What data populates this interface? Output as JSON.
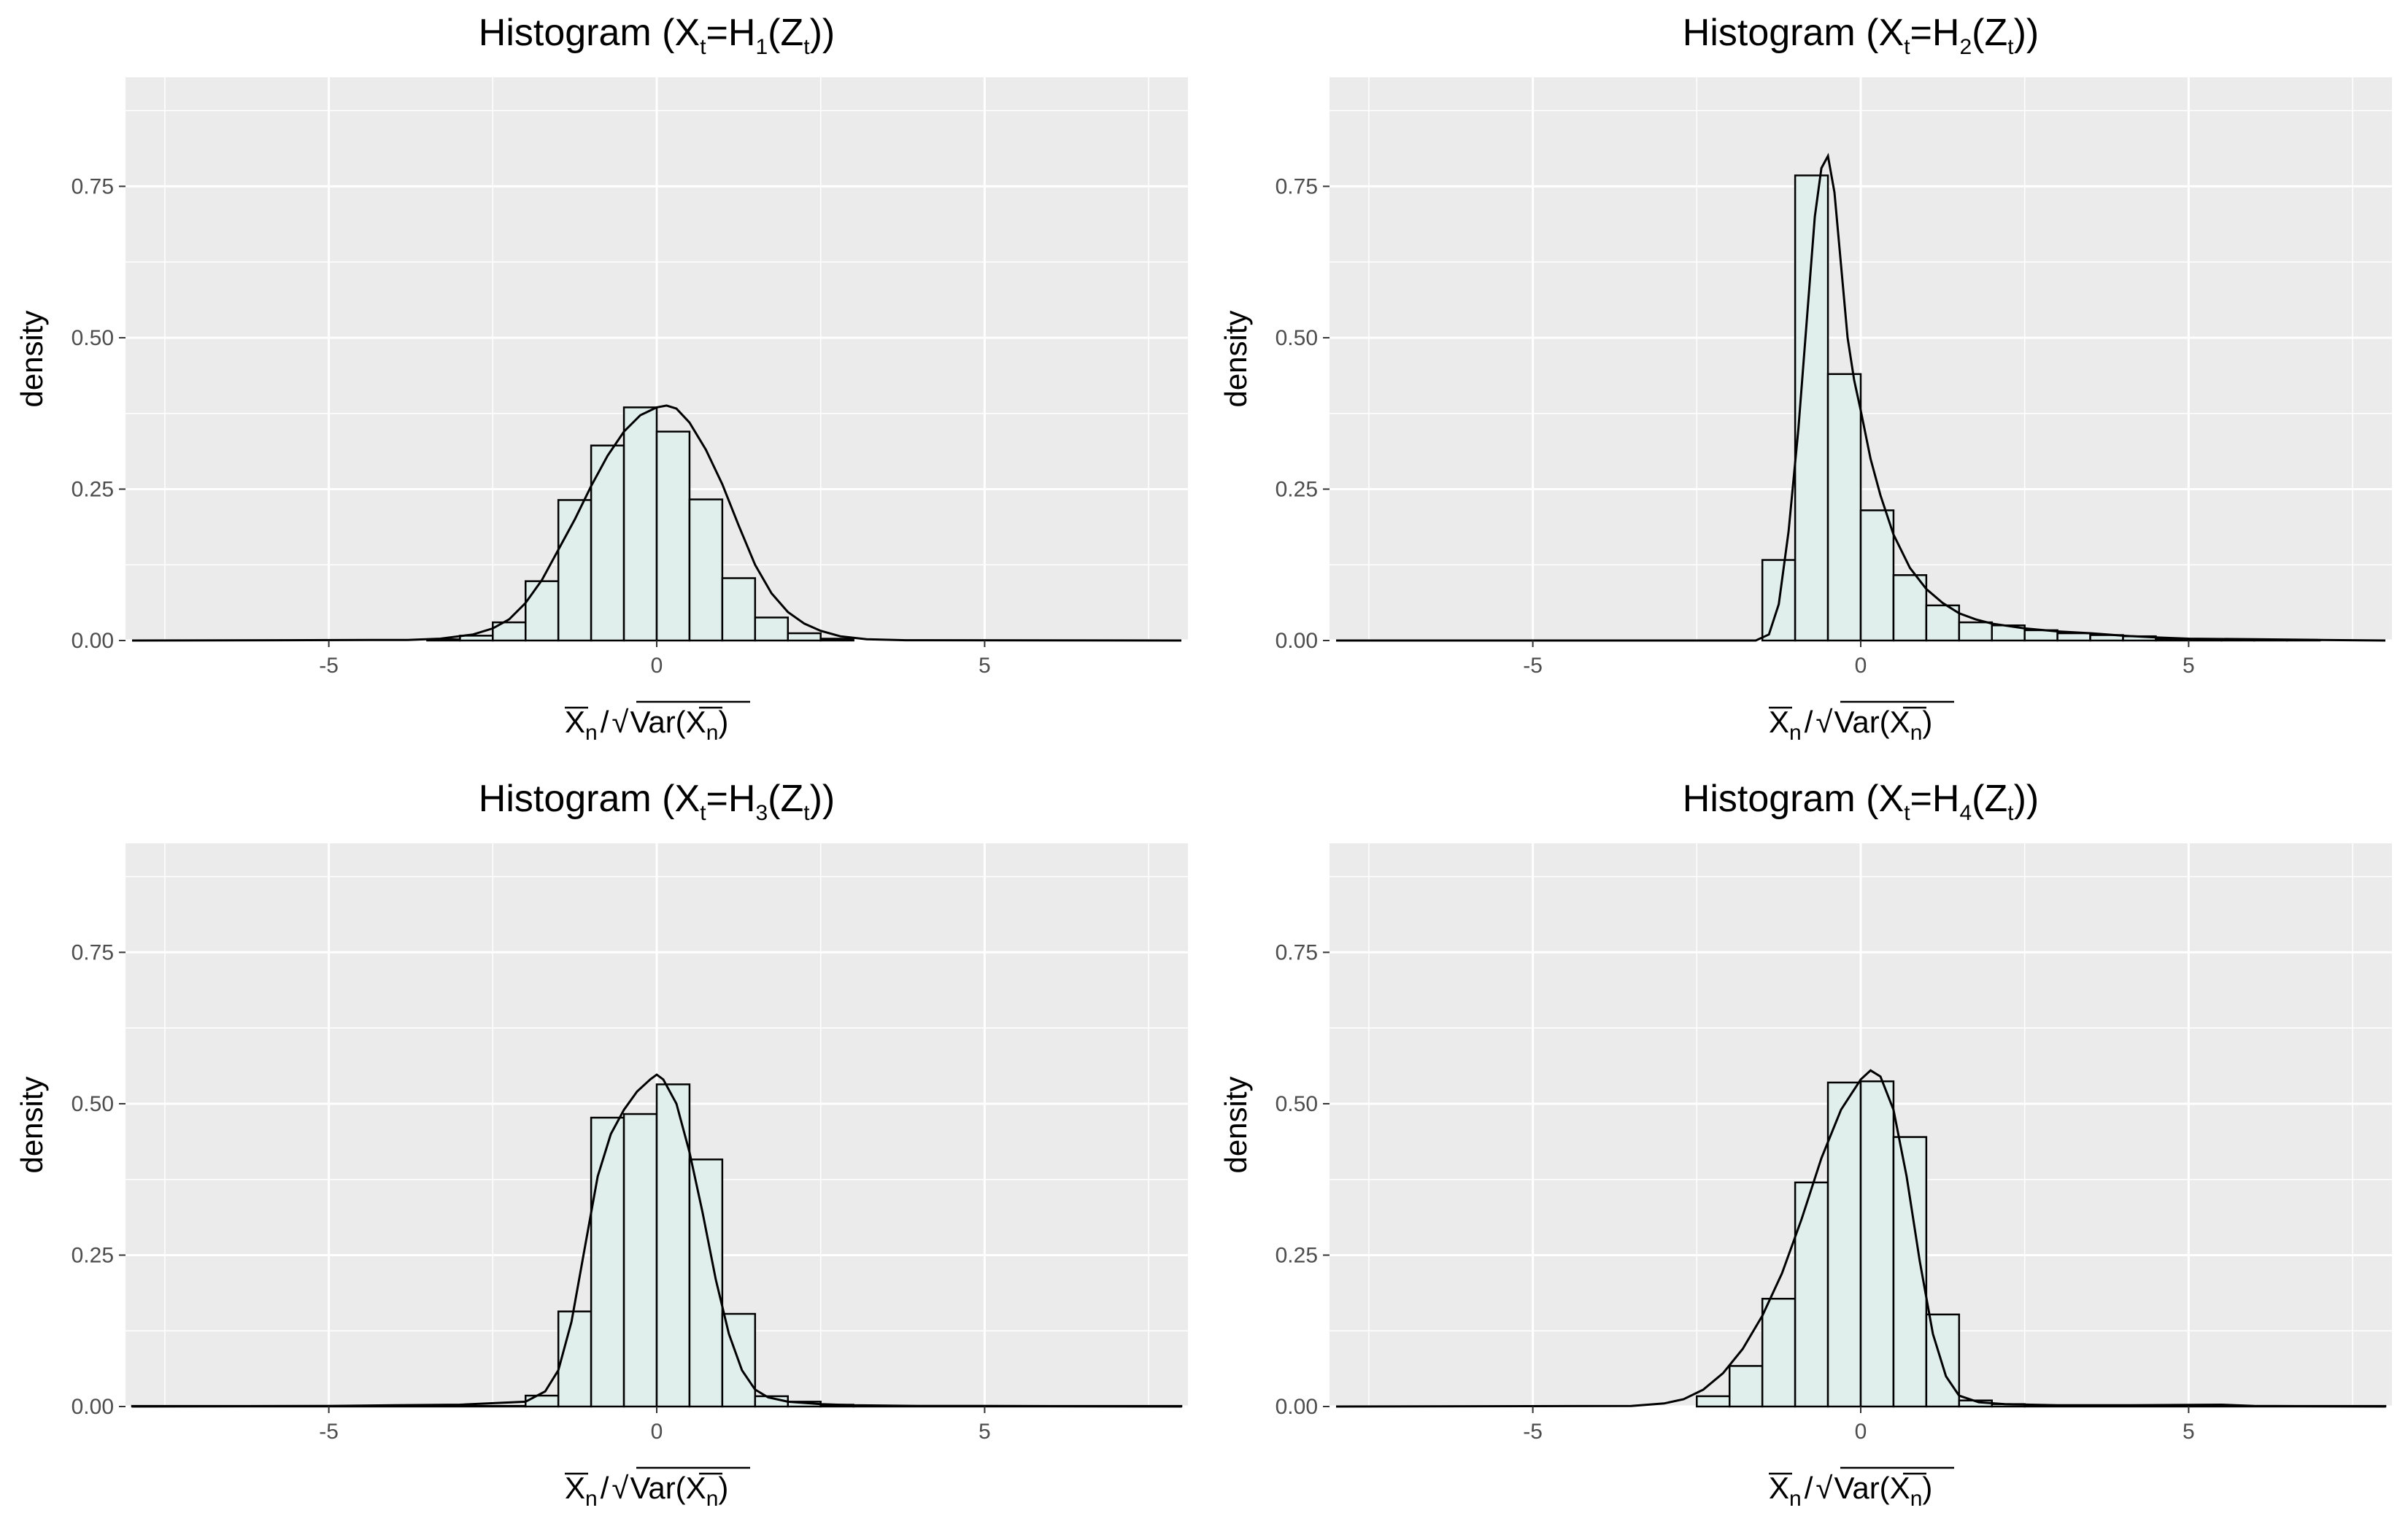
{
  "figure": {
    "bar_fill": "#e0efec",
    "bar_stroke": "#000000",
    "panel_background": "#ebebeb",
    "grid_color": "#ffffff"
  },
  "chart_data": [
    {
      "type": "bar",
      "title": {
        "pre": "Histogram (X",
        "s1": "t",
        "mid1": "=H",
        "s2": "1",
        "mid2": "(Z",
        "s3": "t",
        "post": "))"
      },
      "xlabel": {
        "x": "X",
        "n1": "n",
        "slash": "/",
        "var": "Var(",
        "x2": "X",
        "n2": "n",
        "close": ")"
      },
      "ylabel": "density",
      "xlim": [
        -8.1,
        8.1
      ],
      "ylim": [
        0,
        0.93
      ],
      "xticks": [
        -5,
        0,
        5
      ],
      "xtick_labels": [
        "-5",
        "0",
        "5"
      ],
      "yticks": [
        0,
        0.25,
        0.5,
        0.75
      ],
      "ytick_labels": [
        "0.00",
        "0.25",
        "0.50",
        "0.75"
      ],
      "bin_width": 0.5,
      "bins": [
        {
          "x0": -8.0,
          "x1": -3.5,
          "density": 0.0
        },
        {
          "x0": -3.5,
          "x1": -3.0,
          "density": 0.002
        },
        {
          "x0": -3.0,
          "x1": -2.5,
          "density": 0.008
        },
        {
          "x0": -2.5,
          "x1": -2.0,
          "density": 0.03
        },
        {
          "x0": -2.0,
          "x1": -1.5,
          "density": 0.098
        },
        {
          "x0": -1.5,
          "x1": -1.0,
          "density": 0.232
        },
        {
          "x0": -1.0,
          "x1": -0.5,
          "density": 0.322
        },
        {
          "x0": -0.5,
          "x1": 0.0,
          "density": 0.385
        },
        {
          "x0": 0.0,
          "x1": 0.5,
          "density": 0.345
        },
        {
          "x0": 0.5,
          "x1": 1.0,
          "density": 0.233
        },
        {
          "x0": 1.0,
          "x1": 1.5,
          "density": 0.103
        },
        {
          "x0": 1.5,
          "x1": 2.0,
          "density": 0.038
        },
        {
          "x0": 2.0,
          "x1": 2.5,
          "density": 0.012
        },
        {
          "x0": 2.5,
          "x1": 3.0,
          "density": 0.003
        },
        {
          "x0": 3.0,
          "x1": 8.0,
          "density": 0.0
        }
      ],
      "density_curve": {
        "x": [
          -8.0,
          -3.8,
          -3.3,
          -2.8,
          -2.5,
          -2.25,
          -2.0,
          -1.75,
          -1.5,
          -1.25,
          -1.0,
          -0.75,
          -0.5,
          -0.25,
          0.0,
          0.15,
          0.3,
          0.5,
          0.75,
          1.0,
          1.25,
          1.5,
          1.75,
          2.0,
          2.25,
          2.5,
          2.8,
          3.2,
          3.8,
          8.0
        ],
        "y": [
          0.0,
          0.001,
          0.003,
          0.01,
          0.02,
          0.035,
          0.062,
          0.1,
          0.15,
          0.2,
          0.255,
          0.305,
          0.345,
          0.372,
          0.385,
          0.388,
          0.383,
          0.36,
          0.315,
          0.258,
          0.19,
          0.125,
          0.078,
          0.047,
          0.028,
          0.016,
          0.007,
          0.002,
          0.0005,
          0.0
        ]
      }
    },
    {
      "type": "bar",
      "title": {
        "pre": "Histogram (X",
        "s1": "t",
        "mid1": "=H",
        "s2": "2",
        "mid2": "(Z",
        "s3": "t",
        "post": "))"
      },
      "xlabel": {
        "x": "X",
        "n1": "n",
        "slash": "/",
        "var": "Var(",
        "x2": "X",
        "n2": "n",
        "close": ")"
      },
      "ylabel": "density",
      "xlim": [
        -8.1,
        8.1
      ],
      "ylim": [
        0,
        0.93
      ],
      "xticks": [
        -5,
        0,
        5
      ],
      "xtick_labels": [
        "-5",
        "0",
        "5"
      ],
      "yticks": [
        0,
        0.25,
        0.5,
        0.75
      ],
      "ytick_labels": [
        "0.00",
        "0.25",
        "0.50",
        "0.75"
      ],
      "bin_width": 0.5,
      "bins": [
        {
          "x0": -8.0,
          "x1": -1.5,
          "density": 0.0
        },
        {
          "x0": -1.5,
          "x1": -1.0,
          "density": 0.133
        },
        {
          "x0": -1.0,
          "x1": -0.5,
          "density": 0.768
        },
        {
          "x0": -0.5,
          "x1": 0.0,
          "density": 0.44
        },
        {
          "x0": 0.0,
          "x1": 0.5,
          "density": 0.215
        },
        {
          "x0": 0.5,
          "x1": 1.0,
          "density": 0.108
        },
        {
          "x0": 1.0,
          "x1": 1.5,
          "density": 0.058
        },
        {
          "x0": 1.5,
          "x1": 2.0,
          "density": 0.03
        },
        {
          "x0": 2.0,
          "x1": 2.5,
          "density": 0.025
        },
        {
          "x0": 2.5,
          "x1": 3.0,
          "density": 0.017
        },
        {
          "x0": 3.0,
          "x1": 3.5,
          "density": 0.012
        },
        {
          "x0": 3.5,
          "x1": 4.0,
          "density": 0.009
        },
        {
          "x0": 4.0,
          "x1": 4.5,
          "density": 0.007
        },
        {
          "x0": 4.5,
          "x1": 5.0,
          "density": 0.003
        },
        {
          "x0": 5.0,
          "x1": 5.5,
          "density": 0.002
        },
        {
          "x0": 5.5,
          "x1": 6.0,
          "density": 0.001
        },
        {
          "x0": 6.0,
          "x1": 6.5,
          "density": 0.001
        },
        {
          "x0": 6.5,
          "x1": 7.0,
          "density": 0.001
        },
        {
          "x0": 7.0,
          "x1": 8.0,
          "density": 0.0
        }
      ],
      "density_curve": {
        "x": [
          -8.0,
          -1.6,
          -1.4,
          -1.25,
          -1.1,
          -0.95,
          -0.8,
          -0.7,
          -0.6,
          -0.5,
          -0.4,
          -0.3,
          -0.2,
          -0.1,
          0.0,
          0.15,
          0.3,
          0.5,
          0.75,
          1.0,
          1.25,
          1.5,
          1.75,
          2.0,
          2.5,
          3.0,
          3.5,
          4.0,
          4.5,
          5.0,
          6.0,
          7.0,
          8.0
        ],
        "y": [
          0.0,
          0.0,
          0.01,
          0.06,
          0.18,
          0.35,
          0.56,
          0.7,
          0.78,
          0.8,
          0.74,
          0.62,
          0.5,
          0.43,
          0.38,
          0.3,
          0.24,
          0.175,
          0.12,
          0.085,
          0.062,
          0.045,
          0.035,
          0.028,
          0.02,
          0.015,
          0.012,
          0.008,
          0.005,
          0.003,
          0.002,
          0.001,
          0.0
        ]
      }
    },
    {
      "type": "bar",
      "title": {
        "pre": "Histogram (X",
        "s1": "t",
        "mid1": "=H",
        "s2": "3",
        "mid2": "(Z",
        "s3": "t",
        "post": "))"
      },
      "xlabel": {
        "x": "X",
        "n1": "n",
        "slash": "/",
        "var": "Var(",
        "x2": "X",
        "n2": "n",
        "close": ")"
      },
      "ylabel": "density",
      "xlim": [
        -8.1,
        8.1
      ],
      "ylim": [
        0,
        0.93
      ],
      "xticks": [
        -5,
        0,
        5
      ],
      "xtick_labels": [
        "-5",
        "0",
        "5"
      ],
      "yticks": [
        0,
        0.25,
        0.5,
        0.75
      ],
      "ytick_labels": [
        "0.00",
        "0.25",
        "0.50",
        "0.75"
      ],
      "bin_width": 0.5,
      "bins": [
        {
          "x0": -8.0,
          "x1": -2.0,
          "density": 0.001
        },
        {
          "x0": -2.0,
          "x1": -1.5,
          "density": 0.018
        },
        {
          "x0": -1.5,
          "x1": -1.0,
          "density": 0.157
        },
        {
          "x0": -1.0,
          "x1": -0.5,
          "density": 0.477
        },
        {
          "x0": -0.5,
          "x1": 0.0,
          "density": 0.483
        },
        {
          "x0": 0.0,
          "x1": 0.5,
          "density": 0.532
        },
        {
          "x0": 0.5,
          "x1": 1.0,
          "density": 0.408
        },
        {
          "x0": 1.0,
          "x1": 1.5,
          "density": 0.153
        },
        {
          "x0": 1.5,
          "x1": 2.0,
          "density": 0.017
        },
        {
          "x0": 2.0,
          "x1": 2.5,
          "density": 0.008
        },
        {
          "x0": 2.5,
          "x1": 3.0,
          "density": 0.003
        },
        {
          "x0": 3.0,
          "x1": 8.0,
          "density": 0.001
        }
      ],
      "density_curve": {
        "x": [
          -8.0,
          -5.0,
          -4.0,
          -3.0,
          -2.0,
          -1.7,
          -1.5,
          -1.3,
          -1.1,
          -0.9,
          -0.7,
          -0.5,
          -0.3,
          -0.1,
          0.0,
          0.1,
          0.3,
          0.5,
          0.7,
          0.9,
          1.1,
          1.3,
          1.5,
          1.7,
          2.0,
          2.5,
          3.0,
          4.0,
          5.0,
          8.0
        ],
        "y": [
          0.0,
          0.001,
          0.002,
          0.003,
          0.008,
          0.025,
          0.06,
          0.14,
          0.26,
          0.38,
          0.45,
          0.49,
          0.52,
          0.54,
          0.548,
          0.54,
          0.5,
          0.42,
          0.32,
          0.21,
          0.12,
          0.06,
          0.028,
          0.015,
          0.008,
          0.004,
          0.002,
          0.001,
          0.001,
          0.0
        ]
      }
    },
    {
      "type": "bar",
      "title": {
        "pre": "Histogram (X",
        "s1": "t",
        "mid1": "=H",
        "s2": "4",
        "mid2": "(Z",
        "s3": "t",
        "post": "))"
      },
      "xlabel": {
        "x": "X",
        "n1": "n",
        "slash": "/",
        "var": "Var(",
        "x2": "X",
        "n2": "n",
        "close": ")"
      },
      "ylabel": "density",
      "xlim": [
        -8.1,
        8.1
      ],
      "ylim": [
        0,
        0.93
      ],
      "xticks": [
        -5,
        0,
        5
      ],
      "xtick_labels": [
        "-5",
        "0",
        "5"
      ],
      "yticks": [
        0,
        0.25,
        0.5,
        0.75
      ],
      "ytick_labels": [
        "0.00",
        "0.25",
        "0.50",
        "0.75"
      ],
      "bin_width": 0.5,
      "bins": [
        {
          "x0": -8.0,
          "x1": -2.5,
          "density": 0.0
        },
        {
          "x0": -2.5,
          "x1": -2.0,
          "density": 0.017
        },
        {
          "x0": -2.0,
          "x1": -1.5,
          "density": 0.067
        },
        {
          "x0": -1.5,
          "x1": -1.0,
          "density": 0.178
        },
        {
          "x0": -1.0,
          "x1": -0.5,
          "density": 0.37
        },
        {
          "x0": -0.5,
          "x1": 0.0,
          "density": 0.535
        },
        {
          "x0": 0.0,
          "x1": 0.5,
          "density": 0.537
        },
        {
          "x0": 0.5,
          "x1": 1.0,
          "density": 0.445
        },
        {
          "x0": 1.0,
          "x1": 1.5,
          "density": 0.152
        },
        {
          "x0": 1.5,
          "x1": 2.0,
          "density": 0.01
        },
        {
          "x0": 2.0,
          "x1": 2.5,
          "density": 0.004
        },
        {
          "x0": 2.5,
          "x1": 8.0,
          "density": 0.001
        }
      ],
      "density_curve": {
        "x": [
          -8.0,
          -3.5,
          -3.0,
          -2.7,
          -2.4,
          -2.1,
          -1.8,
          -1.5,
          -1.2,
          -0.9,
          -0.6,
          -0.3,
          0.0,
          0.15,
          0.3,
          0.5,
          0.7,
          0.9,
          1.1,
          1.3,
          1.5,
          1.8,
          2.2,
          3.0,
          4.0,
          5.5,
          6.0,
          8.0
        ],
        "y": [
          0.0,
          0.001,
          0.005,
          0.012,
          0.028,
          0.055,
          0.095,
          0.15,
          0.22,
          0.31,
          0.41,
          0.49,
          0.54,
          0.555,
          0.545,
          0.49,
          0.38,
          0.24,
          0.12,
          0.05,
          0.018,
          0.007,
          0.004,
          0.002,
          0.002,
          0.003,
          0.001,
          0.0
        ]
      }
    }
  ]
}
